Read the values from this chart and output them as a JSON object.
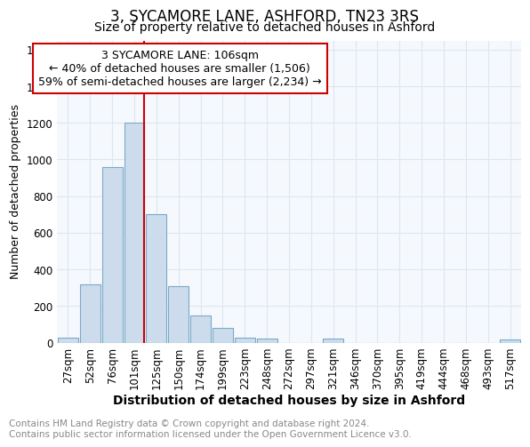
{
  "title": "3, SYCAMORE LANE, ASHFORD, TN23 3RS",
  "subtitle": "Size of property relative to detached houses in Ashford",
  "xlabel": "Distribution of detached houses by size in Ashford",
  "ylabel": "Number of detached properties",
  "bins": [
    "27sqm",
    "52sqm",
    "76sqm",
    "101sqm",
    "125sqm",
    "150sqm",
    "174sqm",
    "199sqm",
    "223sqm",
    "248sqm",
    "272sqm",
    "297sqm",
    "321sqm",
    "346sqm",
    "370sqm",
    "395sqm",
    "419sqm",
    "444sqm",
    "468sqm",
    "493sqm",
    "517sqm"
  ],
  "values": [
    28,
    320,
    960,
    1200,
    700,
    310,
    150,
    80,
    25,
    20,
    0,
    0,
    20,
    0,
    0,
    0,
    0,
    0,
    0,
    0,
    18
  ],
  "bar_color": "#ccdcec",
  "bar_edge_color": "#7aaac8",
  "property_line_x": 3.45,
  "property_line_label": "3 SYCAMORE LANE: 106sqm",
  "annotation_line1": "← 40% of detached houses are smaller (1,506)",
  "annotation_line2": "59% of semi-detached houses are larger (2,234) →",
  "annotation_box_color": "#ffffff",
  "annotation_box_edge": "#cc0000",
  "vline_color": "#cc0000",
  "ylim": [
    0,
    1650
  ],
  "yticks": [
    0,
    200,
    400,
    600,
    800,
    1000,
    1200,
    1400,
    1600
  ],
  "plot_bg_color": "#f5f8fc",
  "grid_color": "#dde6f0",
  "footnote": "Contains HM Land Registry data © Crown copyright and database right 2024.\nContains public sector information licensed under the Open Government Licence v3.0.",
  "title_fontsize": 12,
  "subtitle_fontsize": 10,
  "xlabel_fontsize": 10,
  "ylabel_fontsize": 9,
  "tick_fontsize": 8.5,
  "annotation_fontsize": 9,
  "footnote_fontsize": 7.5
}
